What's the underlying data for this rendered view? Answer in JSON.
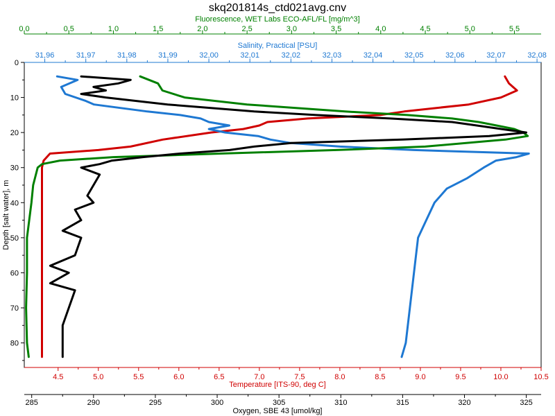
{
  "chart_data": {
    "type": "line",
    "title": "skq201814s_ctd021avg.cnv",
    "ylabel": "Depth [salt water], m",
    "ylim": [
      0,
      87
    ],
    "y_ticks": [
      0,
      10,
      20,
      30,
      40,
      50,
      60,
      70,
      80
    ],
    "grid": false,
    "axes": {
      "fluorescence": {
        "label": "Fluorescence, WET Labs ECO-AFL/FL [mg/m^3]",
        "color": "#008000",
        "range": [
          0.0,
          5.8
        ],
        "ticks": [
          "0.0",
          "0.5",
          "1.0",
          "1.5",
          "2.0",
          "2.5",
          "3.0",
          "3.5",
          "4.0",
          "4.5",
          "5.0",
          "5.5"
        ],
        "tick_values": [
          0,
          0.5,
          1,
          1.5,
          2,
          2.5,
          3,
          3.5,
          4,
          4.5,
          5,
          5.5
        ]
      },
      "salinity": {
        "label": "Salinity, Practical [PSU]",
        "color": "#1e78d2",
        "range": [
          31.955,
          32.081
        ],
        "ticks": [
          "31,96",
          "31,97",
          "31,98",
          "31,99",
          "32,00",
          "32,01",
          "32,02",
          "32,03",
          "32,04",
          "32,05",
          "32,06",
          "32,07",
          "32,08"
        ],
        "tick_values": [
          31.96,
          31.97,
          31.98,
          31.99,
          32.0,
          32.01,
          32.02,
          32.03,
          32.04,
          32.05,
          32.06,
          32.07,
          32.08
        ]
      },
      "temperature": {
        "label": "Temperature [ITS-90, deg C]",
        "color": "#d00000",
        "range": [
          4.08,
          10.5
        ],
        "ticks": [
          "4.5",
          "5.0",
          "5.5",
          "6.0",
          "6.5",
          "7.0",
          "7.5",
          "8.0",
          "8.5",
          "9.0",
          "9.5",
          "10.0",
          "10.5"
        ],
        "tick_values": [
          4.5,
          5,
          5.5,
          6,
          6.5,
          7,
          7.5,
          8,
          8.5,
          9,
          9.5,
          10,
          10.5
        ]
      },
      "oxygen": {
        "label": "Oxygen, SBE 43 [umol/kg]",
        "color": "#000000",
        "range": [
          284.4,
          326.2
        ],
        "ticks": [
          "285",
          "290",
          "295",
          "300",
          "305",
          "310",
          "315",
          "320",
          "325"
        ],
        "tick_values": [
          285,
          290,
          295,
          300,
          305,
          310,
          315,
          320,
          325
        ]
      }
    },
    "series": [
      {
        "axis": "temperature",
        "color": "#d00000",
        "depth": [
          4,
          6,
          8,
          10,
          12,
          13,
          14,
          15,
          16,
          17,
          18,
          19,
          20,
          22,
          24,
          25,
          26,
          28,
          30,
          40,
          50,
          60,
          70,
          80,
          84
        ],
        "values": [
          10.05,
          10.1,
          10.2,
          10.0,
          9.6,
          9.2,
          8.8,
          8.5,
          7.6,
          7.1,
          7.0,
          6.8,
          6.4,
          5.8,
          5.4,
          5.0,
          4.4,
          4.32,
          4.3,
          4.3,
          4.3,
          4.3,
          4.3,
          4.3,
          4.3
        ]
      },
      {
        "axis": "salinity",
        "color": "#1e78d2",
        "depth": [
          4,
          5,
          7,
          9,
          11,
          12,
          14,
          15,
          16,
          17,
          18,
          19,
          20,
          21,
          22,
          23,
          24,
          25,
          26,
          27,
          28,
          30,
          33,
          36,
          40,
          45,
          50,
          60,
          70,
          80,
          84
        ],
        "values": [
          31.963,
          31.968,
          31.964,
          31.965,
          31.97,
          31.972,
          31.985,
          31.993,
          31.998,
          32.0,
          32.005,
          32.0,
          32.004,
          32.012,
          32.015,
          32.02,
          32.032,
          32.05,
          32.078,
          32.075,
          32.07,
          32.067,
          32.063,
          32.058,
          32.055,
          32.053,
          32.051,
          32.05,
          32.049,
          32.048,
          32.047
        ]
      },
      {
        "axis": "fluorescence",
        "color": "#008000",
        "depth": [
          4,
          6,
          8,
          10,
          12,
          14,
          15,
          16,
          17,
          18,
          19,
          20,
          21,
          22,
          24,
          25,
          26,
          27,
          28,
          29,
          30,
          35,
          40,
          50,
          60,
          70,
          80,
          84
        ],
        "values": [
          1.3,
          1.5,
          1.55,
          1.8,
          2.5,
          3.6,
          4.3,
          4.8,
          5.1,
          5.3,
          5.5,
          5.6,
          5.65,
          5.4,
          4.5,
          3.5,
          2.2,
          1.0,
          0.4,
          0.2,
          0.15,
          0.1,
          0.08,
          0.03,
          0.03,
          0.02,
          0.03,
          0.05
        ]
      },
      {
        "axis": "oxygen",
        "color": "#000000",
        "depth": [
          4,
          5,
          6,
          7,
          8,
          9,
          10,
          12,
          14,
          15,
          16,
          17,
          18,
          19,
          20,
          21,
          22,
          23,
          24,
          25,
          26,
          27,
          28,
          29,
          30,
          32,
          35,
          38,
          40,
          42,
          45,
          48,
          50,
          55,
          58,
          60,
          63,
          65,
          70,
          75,
          80,
          84
        ],
        "values": [
          289,
          293,
          292,
          290,
          291,
          289,
          291,
          296,
          303,
          308,
          314,
          319,
          321,
          323,
          325,
          322,
          315,
          306,
          303,
          301,
          297,
          294,
          291.5,
          290.5,
          289,
          290.5,
          290,
          289.5,
          290,
          288.5,
          289,
          287.5,
          289,
          288.5,
          286.5,
          288,
          286.5,
          288.5,
          288,
          287.5,
          287.5,
          287.5
        ]
      }
    ]
  }
}
